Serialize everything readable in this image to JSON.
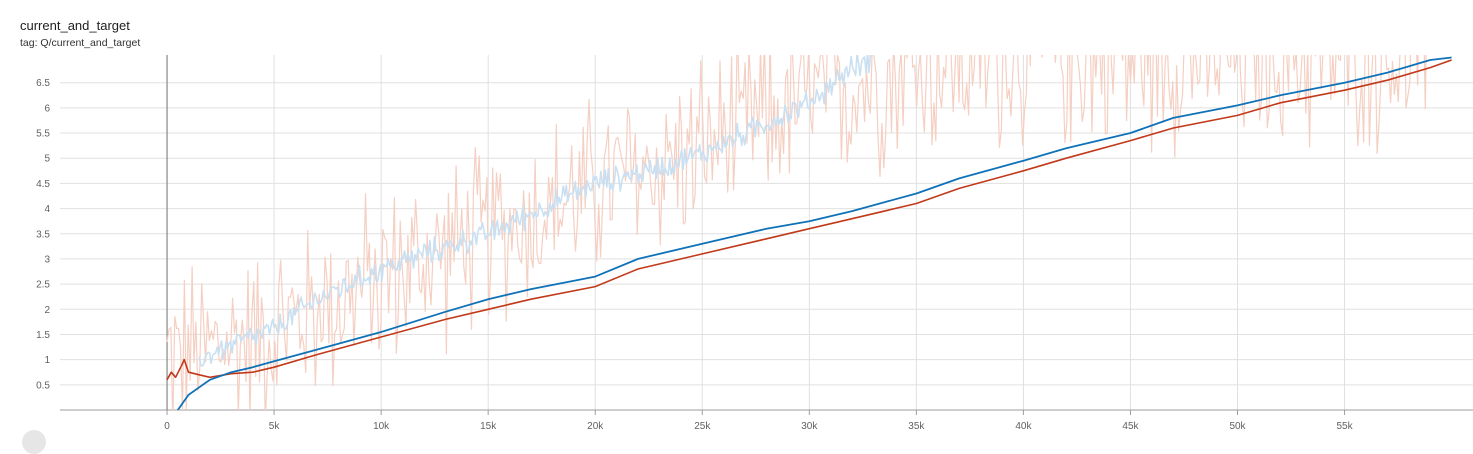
{
  "header": {
    "title": "current_and_target",
    "subtitle": "tag: Q/current_and_target"
  },
  "colors": {
    "current": "#0f72b8",
    "current_raw": "#c9e0f2",
    "target": "#c2391a",
    "target_raw": "#f5cfc2",
    "grid": "#e0e0e0",
    "axis": "#9e9e9e"
  },
  "chart_data": {
    "type": "line",
    "title": "current_and_target",
    "subtitle": "tag: Q/current_and_target",
    "xlim": [
      -5000,
      61000
    ],
    "ylim": [
      0,
      7.05
    ],
    "grid": true,
    "x_ticks": [
      {
        "value": 0,
        "label": "0"
      },
      {
        "value": 5000,
        "label": "5k"
      },
      {
        "value": 10000,
        "label": "10k"
      },
      {
        "value": 15000,
        "label": "15k"
      },
      {
        "value": 20000,
        "label": "20k"
      },
      {
        "value": 25000,
        "label": "25k"
      },
      {
        "value": 30000,
        "label": "30k"
      },
      {
        "value": 35000,
        "label": "35k"
      },
      {
        "value": 40000,
        "label": "40k"
      },
      {
        "value": 45000,
        "label": "45k"
      },
      {
        "value": 50000,
        "label": "50k"
      },
      {
        "value": 55000,
        "label": "55k"
      }
    ],
    "y_ticks": [
      {
        "value": 0.5,
        "label": "0.5"
      },
      {
        "value": 1,
        "label": "1"
      },
      {
        "value": 1.5,
        "label": "1.5"
      },
      {
        "value": 2,
        "label": "2"
      },
      {
        "value": 2.5,
        "label": "2.5"
      },
      {
        "value": 3,
        "label": "3"
      },
      {
        "value": 3.5,
        "label": "3.5"
      },
      {
        "value": 4,
        "label": "4"
      },
      {
        "value": 4.5,
        "label": "4.5"
      },
      {
        "value": 5,
        "label": "5"
      },
      {
        "value": 5.5,
        "label": "5.5"
      },
      {
        "value": 6,
        "label": "6"
      },
      {
        "value": 6.5,
        "label": "6.5"
      }
    ],
    "series": [
      {
        "key": "current_smoothed",
        "x": [
          500,
          1000,
          1500,
          2000,
          3000,
          4000,
          5000,
          7000,
          10000,
          13000,
          15000,
          17000,
          20000,
          22000,
          25000,
          28000,
          30000,
          32000,
          35000,
          37000,
          40000,
          42000,
          45000,
          47000,
          50000,
          52000,
          55000,
          57000,
          59000,
          60000
        ],
        "y": [
          0.0,
          0.3,
          0.45,
          0.6,
          0.75,
          0.85,
          0.97,
          1.2,
          1.55,
          1.95,
          2.2,
          2.4,
          2.65,
          3.0,
          3.3,
          3.6,
          3.75,
          3.95,
          4.3,
          4.6,
          4.95,
          5.2,
          5.5,
          5.8,
          6.05,
          6.25,
          6.5,
          6.7,
          6.95,
          7.0
        ]
      },
      {
        "key": "target_smoothed",
        "x": [
          0,
          200,
          400,
          700,
          800,
          1000,
          1500,
          2000,
          3000,
          4000,
          4500,
          5000,
          7000,
          10000,
          13000,
          15000,
          17000,
          20000,
          22000,
          25000,
          28000,
          30000,
          32000,
          35000,
          37000,
          40000,
          42000,
          45000,
          47000,
          50000,
          52000,
          55000,
          57000,
          59000,
          60000
        ],
        "y": [
          0.6,
          0.75,
          0.65,
          0.9,
          1.0,
          0.75,
          0.7,
          0.65,
          0.72,
          0.75,
          0.8,
          0.85,
          1.1,
          1.45,
          1.8,
          2.0,
          2.2,
          2.45,
          2.8,
          3.1,
          3.4,
          3.6,
          3.8,
          4.1,
          4.4,
          4.75,
          5.0,
          5.35,
          5.6,
          5.85,
          6.1,
          6.35,
          6.55,
          6.8,
          6.95
        ]
      },
      {
        "key": "current_raw",
        "x": [
          1500,
          3000,
          5000,
          7000,
          10000,
          12000,
          15000,
          17000,
          20000,
          22000,
          25000,
          27000,
          30000,
          32000,
          33000
        ],
        "y": [
          1.0,
          1.3,
          1.6,
          2.2,
          2.8,
          3.1,
          3.5,
          3.9,
          4.5,
          4.7,
          5.1,
          5.5,
          6.1,
          6.8,
          7.0
        ]
      },
      {
        "key": "target_raw",
        "x": [
          0,
          5000,
          10000,
          15000,
          20000,
          25000,
          30000,
          35000,
          40000,
          45000,
          50000,
          55000
        ],
        "y": [
          1.0,
          1.6,
          2.6,
          3.5,
          4.4,
          5.2,
          6.2,
          6.8,
          7.0,
          7.0,
          7.0,
          7.0
        ]
      }
    ]
  }
}
